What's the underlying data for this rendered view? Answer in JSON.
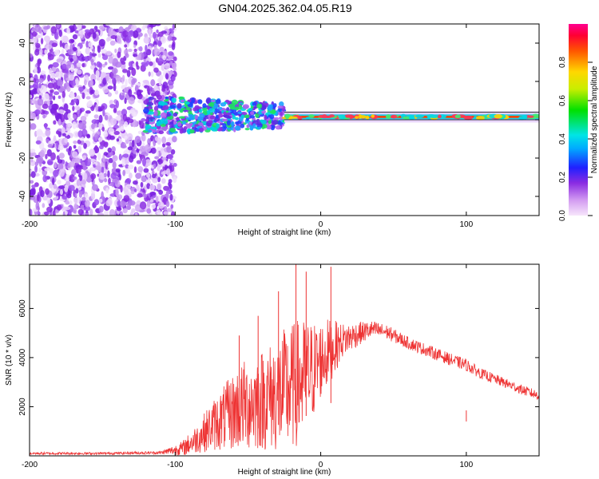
{
  "page": {
    "title": "GN04.2025.362.04.05.R19"
  },
  "colors": {
    "snr_line": "#ee3333",
    "ridge": "#dd1133",
    "noise": "#9b5cf0"
  },
  "chart_data": [
    {
      "type": "heatmap",
      "title": "GN04.2025.362.04.05.R19",
      "xlabel": "Height of straight line (km)",
      "ylabel": "Frequency (Hz)",
      "xlim": [
        -200,
        150
      ],
      "ylim": [
        -50,
        50
      ],
      "xticks": [
        -200,
        -100,
        0,
        100
      ],
      "yticks": [
        -40,
        -20,
        0,
        20,
        40
      ],
      "colorbar": {
        "label": "Normalized spectral amplitude",
        "range": [
          0,
          1
        ],
        "ticks": [
          "0.0",
          "0.2",
          "0.4",
          "0.6",
          "0.8"
        ]
      },
      "features": {
        "noise_region_km": [
          -200,
          -100
        ],
        "transition_region_km": [
          -120,
          -25
        ],
        "signal_ridge_km": [
          -25,
          150
        ],
        "ridge_frequency_hz": 1.5
      }
    },
    {
      "type": "line",
      "xlabel": "Height of straight line (km)",
      "ylabel": "SNR (10 * v/v)",
      "xlim": [
        -200,
        150
      ],
      "ylim": [
        0,
        7800
      ],
      "xticks": [
        -200,
        -100,
        0,
        100
      ],
      "yticks": [
        2000,
        4000,
        6000
      ],
      "series": [
        {
          "name": "SNR",
          "x": [
            -200,
            -150,
            -110,
            -95,
            -85,
            -75,
            -65,
            -55,
            -45,
            -35,
            -25,
            -15,
            -5,
            0,
            5,
            15,
            25,
            35,
            45,
            60,
            75,
            90,
            100,
            110,
            125,
            140,
            150
          ],
          "y": [
            100,
            100,
            130,
            300,
            700,
            1200,
            1600,
            2000,
            2200,
            2400,
            2600,
            3000,
            3500,
            3900,
            4200,
            4700,
            4950,
            5150,
            5050,
            4600,
            4250,
            3900,
            3700,
            3350,
            3000,
            2650,
            2450
          ],
          "noise": [
            50,
            50,
            60,
            300,
            600,
            1000,
            1400,
            1800,
            2000,
            2200,
            2600,
            2600,
            2000,
            1600,
            1400,
            700,
            500,
            350,
            300,
            250,
            250,
            250,
            250,
            220,
            200,
            200,
            200
          ]
        }
      ],
      "spikes": [
        {
          "x": -56,
          "y": 4900
        },
        {
          "x": -43,
          "y": 5700
        },
        {
          "x": -29,
          "y": 6700
        },
        {
          "x": -17,
          "y": 7800
        },
        {
          "x": -10,
          "y": 7500
        },
        {
          "x": 7,
          "y": 7700
        },
        {
          "x": 100,
          "y": 1400
        }
      ]
    }
  ]
}
